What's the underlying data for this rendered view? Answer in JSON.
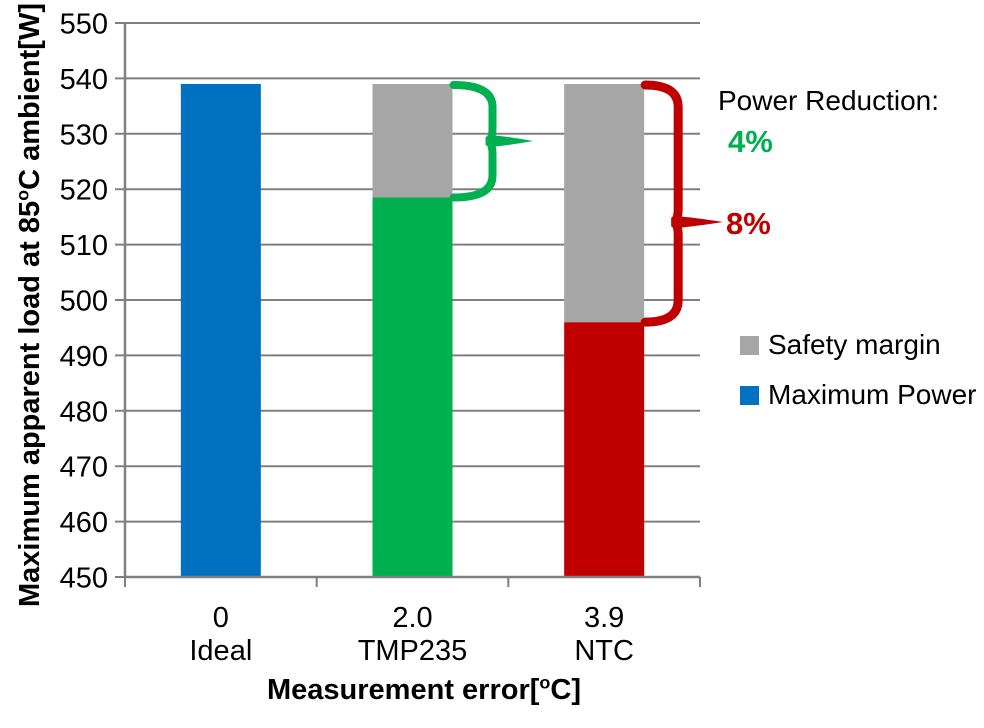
{
  "chart_data": {
    "type": "bar",
    "stacked": true,
    "title": "",
    "xlabel": "Measurement error[⁰C]",
    "ylabel": "Maximum apparent load at 85⁰C ambient[W]",
    "ylim": [
      450,
      550
    ],
    "ytick_step": 10,
    "grid": "horizontal",
    "legend_position": "right",
    "grid_color": "#808080",
    "axis_color": "#808080",
    "categories": [
      {
        "error": "0",
        "sensor": "Ideal"
      },
      {
        "error": "2.0",
        "sensor": "TMP235"
      },
      {
        "error": "3.9",
        "sensor": "NTC"
      }
    ],
    "series": [
      {
        "name": "Maximum Power",
        "values": [
          539,
          518.5,
          496
        ],
        "bar_colors": [
          "#0070C0",
          "#00B050",
          "#C00000"
        ],
        "legend_color": "#0070C0"
      },
      {
        "name": "Safety margin",
        "values": [
          0,
          20.5,
          43
        ],
        "bar_colors": [
          "#A6A6A6",
          "#A6A6A6",
          "#A6A6A6"
        ],
        "legend_color": "#A6A6A6"
      }
    ],
    "annotations": {
      "title": "Power Reduction:",
      "braces": [
        {
          "label": "4%",
          "color": "#00B050",
          "category": "TMP235",
          "from": 539,
          "to": 518.5
        },
        {
          "label": "8%",
          "color": "#C00000",
          "category": "NTC",
          "from": 539,
          "to": 496
        }
      ]
    }
  },
  "axis_titles": {
    "y": {
      "pre": "Maximum apparent load at 85",
      "sup": "o",
      "post": "C ambient[W]"
    },
    "x": {
      "pre": "Measurement error[",
      "sup": "o",
      "post": "C]"
    }
  },
  "legend": {
    "items": [
      {
        "label": "Safety margin",
        "color": "#A6A6A6"
      },
      {
        "label": "Maximum Power",
        "color": "#0070C0"
      }
    ]
  }
}
